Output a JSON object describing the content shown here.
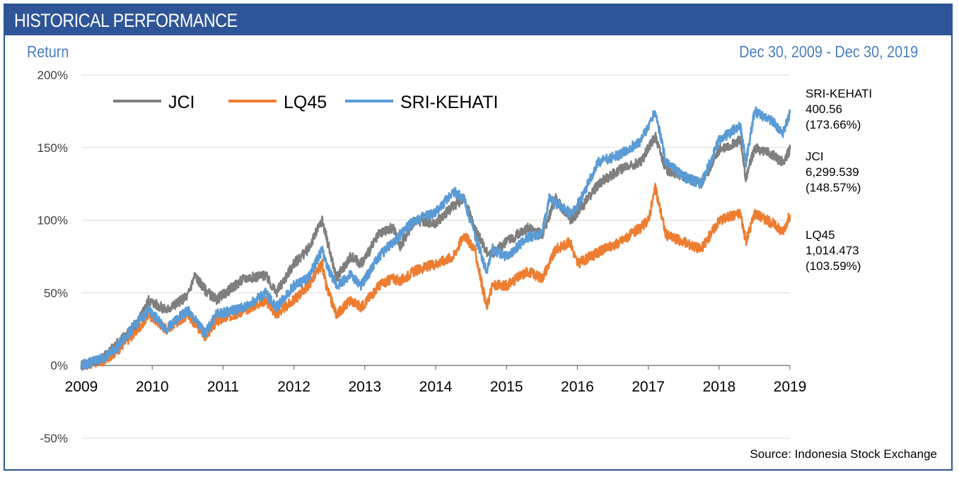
{
  "header": {
    "title": "HISTORICAL PERFORMANCE"
  },
  "subheader": {
    "left": "Return",
    "right": "Dec 30, 2009 - Dec 30, 2019"
  },
  "source": "Source: Indonesia Stock Exchange",
  "colors": {
    "header_bg": "#2e5597",
    "accent_text": "#4a7fc1",
    "JCI": "#7f7f7f",
    "LQ45": "#ed7d31",
    "SRI-KEHATI": "#5b9bd5",
    "grid": "#d9d9d9"
  },
  "chart_data": {
    "type": "line",
    "title": "",
    "xlabel": "",
    "ylabel": "Return",
    "x_ticks": [
      "2009",
      "2010",
      "2011",
      "2012",
      "2013",
      "2014",
      "2015",
      "2016",
      "2017",
      "2018",
      "2019"
    ],
    "y_ticks": [
      "200%",
      "150%",
      "100%",
      "50%",
      "0%",
      "-50%"
    ],
    "xlim": [
      2009,
      2019
    ],
    "ylim": [
      -50,
      200
    ],
    "grid": true,
    "legend": {
      "position": "top-left",
      "entries": [
        "JCI",
        "LQ45",
        "SRI-KEHATI"
      ]
    },
    "series": [
      {
        "name": "JCI",
        "x": [
          2009.0,
          2009.3,
          2009.5,
          2009.8,
          2009.95,
          2010.2,
          2010.5,
          2010.6,
          2010.75,
          2010.9,
          2011.3,
          2011.6,
          2011.75,
          2012.0,
          2012.2,
          2012.4,
          2012.45,
          2012.6,
          2012.8,
          2012.95,
          2013.2,
          2013.4,
          2013.5,
          2013.7,
          2014.0,
          2014.25,
          2014.4,
          2014.55,
          2014.75,
          2015.0,
          2015.3,
          2015.5,
          2015.7,
          2015.9,
          2016.0,
          2016.3,
          2016.6,
          2016.9,
          2017.0,
          2017.1,
          2017.25,
          2017.5,
          2017.75,
          2018.0,
          2018.3,
          2018.38,
          2018.5,
          2018.75,
          2018.9,
          2019.0
        ],
        "values": [
          0,
          5,
          15,
          30,
          45,
          38,
          48,
          62,
          52,
          45,
          60,
          62,
          50,
          70,
          80,
          100,
          90,
          60,
          75,
          70,
          90,
          95,
          82,
          100,
          98,
          110,
          115,
          95,
          75,
          85,
          95,
          90,
          115,
          100,
          105,
          125,
          135,
          140,
          150,
          158,
          135,
          130,
          125,
          148,
          155,
          128,
          150,
          145,
          140,
          148.57
        ]
      },
      {
        "name": "LQ45",
        "x": [
          2009.0,
          2009.3,
          2009.5,
          2009.8,
          2009.95,
          2010.2,
          2010.5,
          2010.75,
          2010.9,
          2011.3,
          2011.6,
          2011.75,
          2012.0,
          2012.2,
          2012.4,
          2012.45,
          2012.6,
          2012.8,
          2012.95,
          2013.2,
          2013.4,
          2013.5,
          2013.7,
          2014.0,
          2014.25,
          2014.4,
          2014.55,
          2014.72,
          2014.8,
          2015.0,
          2015.3,
          2015.5,
          2015.7,
          2015.9,
          2016.0,
          2016.3,
          2016.6,
          2016.9,
          2017.0,
          2017.1,
          2017.25,
          2017.5,
          2017.75,
          2018.0,
          2018.3,
          2018.38,
          2018.5,
          2018.75,
          2018.9,
          2019.0
        ],
        "values": [
          0,
          3,
          10,
          25,
          35,
          25,
          35,
          20,
          30,
          38,
          45,
          35,
          45,
          55,
          70,
          55,
          35,
          45,
          40,
          55,
          60,
          58,
          65,
          70,
          75,
          90,
          80,
          40,
          55,
          55,
          65,
          60,
          80,
          85,
          70,
          78,
          85,
          95,
          100,
          122,
          90,
          85,
          80,
          100,
          105,
          85,
          105,
          98,
          92,
          103.59
        ]
      },
      {
        "name": "SRI-KEHATI",
        "x": [
          2009.0,
          2009.3,
          2009.5,
          2009.8,
          2009.95,
          2010.2,
          2010.5,
          2010.75,
          2010.9,
          2011.3,
          2011.6,
          2011.75,
          2012.0,
          2012.2,
          2012.4,
          2012.45,
          2012.6,
          2012.8,
          2012.95,
          2013.2,
          2013.4,
          2013.5,
          2013.7,
          2014.0,
          2014.25,
          2014.4,
          2014.55,
          2014.72,
          2014.8,
          2015.0,
          2015.3,
          2015.5,
          2015.6,
          2015.9,
          2016.0,
          2016.3,
          2016.6,
          2016.9,
          2017.0,
          2017.1,
          2017.25,
          2017.5,
          2017.75,
          2018.0,
          2018.3,
          2018.38,
          2018.5,
          2018.75,
          2018.9,
          2019.0
        ],
        "values": [
          0,
          5,
          12,
          30,
          38,
          25,
          38,
          22,
          35,
          40,
          50,
          40,
          55,
          60,
          80,
          70,
          55,
          62,
          55,
          75,
          85,
          90,
          100,
          105,
          120,
          115,
          90,
          65,
          80,
          75,
          88,
          90,
          115,
          105,
          110,
          140,
          145,
          155,
          165,
          175,
          140,
          130,
          125,
          155,
          165,
          140,
          175,
          168,
          160,
          173.66
        ]
      }
    ],
    "end_labels": [
      {
        "series": "SRI-KEHATI",
        "name": "SRI-KEHATI",
        "value": "400.56",
        "pct": "(173.66%)"
      },
      {
        "series": "JCI",
        "name": "JCI",
        "value": "6,299.539",
        "pct": "(148.57%)"
      },
      {
        "series": "LQ45",
        "name": "LQ45",
        "value": "1,014.473",
        "pct": "(103.59%)"
      }
    ]
  }
}
